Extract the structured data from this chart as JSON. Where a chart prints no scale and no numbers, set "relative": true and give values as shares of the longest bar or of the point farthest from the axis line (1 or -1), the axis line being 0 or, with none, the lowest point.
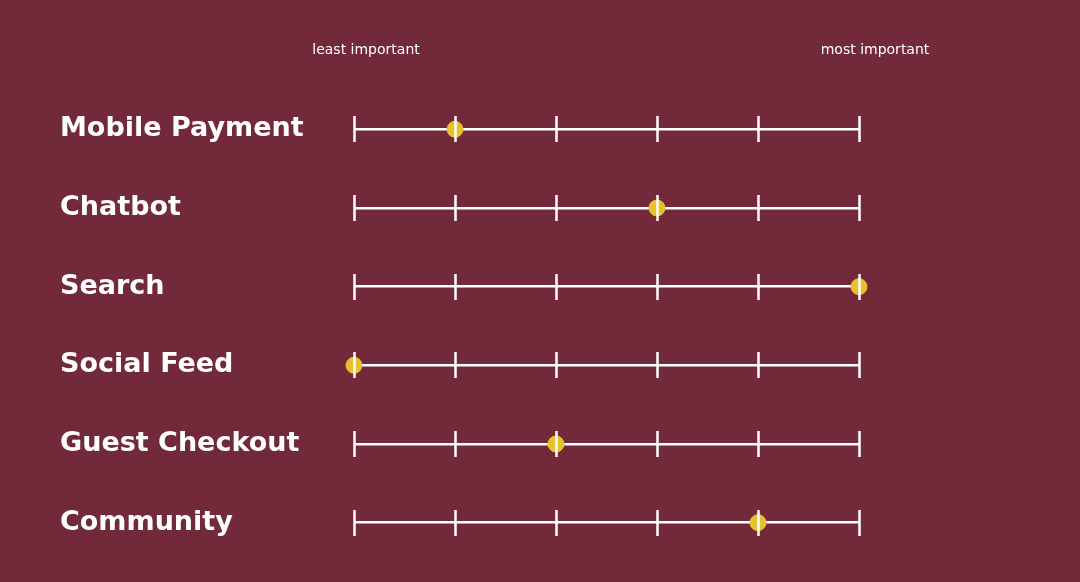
{
  "chart_data": {
    "type": "scatter",
    "orientation": "horizontal",
    "categories": [
      "Mobile Payment",
      "Chatbot",
      "Search",
      "Social Feed",
      "Guest Checkout",
      "Community"
    ],
    "values": [
      0.2,
      0.6,
      1,
      0,
      0.4,
      0.8
    ],
    "relative": true,
    "annotations": [
      "least important",
      "most important"
    ],
    "color": "#e5c22f",
    "grid": "y",
    "legend": false,
    "marker": "circle"
  }
}
